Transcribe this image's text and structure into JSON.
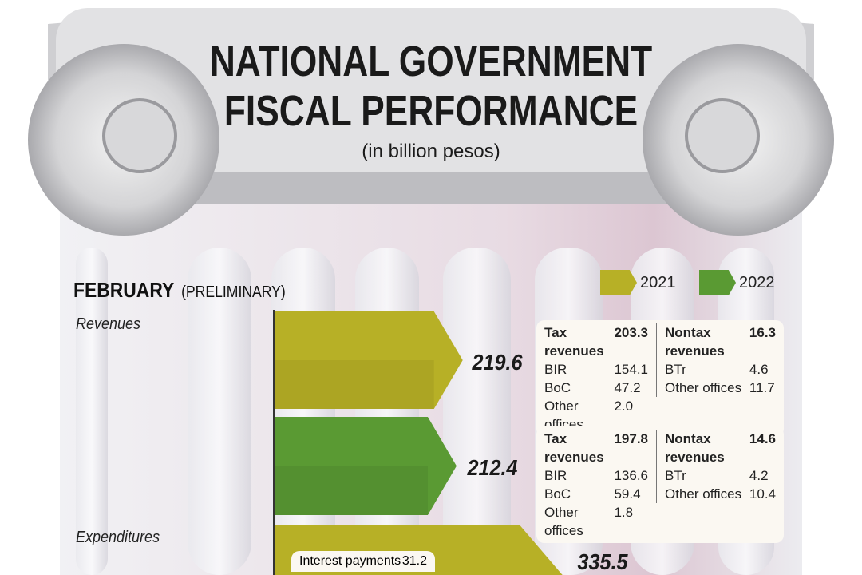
{
  "title": {
    "line1": "NATIONAL GOVERNMENT",
    "line2": "FISCAL PERFORMANCE",
    "unit": "(in billion pesos)"
  },
  "header": {
    "month": "FEBRUARY",
    "note": "(PRELIMINARY)"
  },
  "colors": {
    "y2021": "#b7b026",
    "y2022": "#5a9a33"
  },
  "chart_data": {
    "type": "bar",
    "orientation": "horizontal",
    "unit": "billion pesos",
    "legend": [
      "2021",
      "2022"
    ],
    "legend_position": "top-right",
    "groups": [
      {
        "label": "Revenues",
        "bars": [
          {
            "series": "2021",
            "value": 219.6,
            "label": "219.6",
            "breakdown": {
              "tax": {
                "label": "Tax revenues",
                "value": "203.3",
                "items": [
                  {
                    "label": "BIR",
                    "value": "154.1"
                  },
                  {
                    "label": "BoC",
                    "value": "47.2"
                  },
                  {
                    "label": "Other offices",
                    "value": "2.0"
                  }
                ]
              },
              "nontax": {
                "label": "Nontax revenues",
                "value": "16.3",
                "items": [
                  {
                    "label": "BTr",
                    "value": "4.6"
                  },
                  {
                    "label": "Other offices",
                    "value": "11.7"
                  }
                ]
              }
            }
          },
          {
            "series": "2022",
            "value": 212.4,
            "label": "212.4",
            "breakdown": {
              "tax": {
                "label": "Tax revenues",
                "value": "197.8",
                "items": [
                  {
                    "label": "BIR",
                    "value": "136.6"
                  },
                  {
                    "label": "BoC",
                    "value": "59.4"
                  },
                  {
                    "label": "Other offices",
                    "value": "1.8"
                  }
                ]
              },
              "nontax": {
                "label": "Nontax revenues",
                "value": "14.6",
                "items": [
                  {
                    "label": "BTr",
                    "value": "4.2"
                  },
                  {
                    "label": "Other offices",
                    "value": "10.4"
                  }
                ]
              }
            }
          }
        ]
      },
      {
        "label": "Expenditures",
        "bars": [
          {
            "series": "2021",
            "value": 335.5,
            "label": "335.5",
            "breakdown": {
              "items": [
                {
                  "label": "Interest payments",
                  "value": "31.2"
                }
              ]
            }
          }
        ]
      }
    ]
  }
}
